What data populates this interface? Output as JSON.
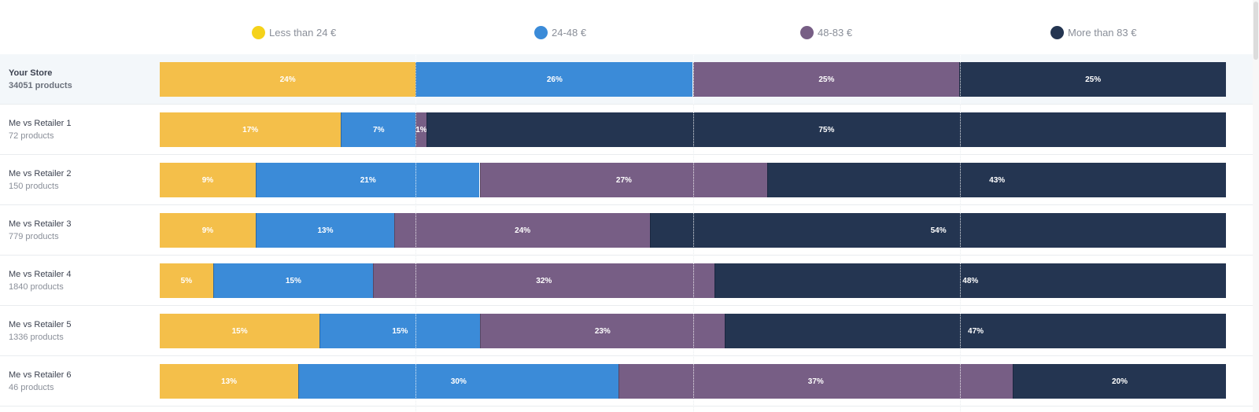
{
  "chart_data": {
    "type": "bar",
    "orientation": "horizontal",
    "stacked": true,
    "categories": [
      {
        "name": "Your Store",
        "count": "34051 products"
      },
      {
        "name": "Me vs Retailer 1",
        "count": "72 products"
      },
      {
        "name": "Me vs Retailer 2",
        "count": "150 products"
      },
      {
        "name": "Me vs Retailer 3",
        "count": "779 products"
      },
      {
        "name": "Me vs Retailer 4",
        "count": "1840 products"
      },
      {
        "name": "Me vs Retailer 5",
        "count": "1336 products"
      },
      {
        "name": "Me vs Retailer 6",
        "count": "46 products"
      }
    ],
    "series": [
      {
        "name": "Less than 24 €",
        "color": "#f4bf4a",
        "values": [
          24,
          17,
          9,
          9,
          5,
          15,
          13
        ]
      },
      {
        "name": "24-48 €",
        "color": "#3b8bd8",
        "values": [
          26,
          7,
          21,
          13,
          15,
          15,
          30
        ]
      },
      {
        "name": "48-83 €",
        "color": "#775e85",
        "values": [
          25,
          1,
          27,
          24,
          32,
          23,
          37
        ]
      },
      {
        "name": "More than 83 €",
        "color": "#243551",
        "values": [
          25,
          75,
          43,
          54,
          48,
          47,
          20
        ]
      }
    ],
    "legend_colors": [
      "#f5d21a",
      "#3b8bd8",
      "#775e85",
      "#243551"
    ],
    "value_suffix": "%",
    "legend_position": "top",
    "xlim": [
      0,
      100
    ],
    "highlight_row": 0
  }
}
